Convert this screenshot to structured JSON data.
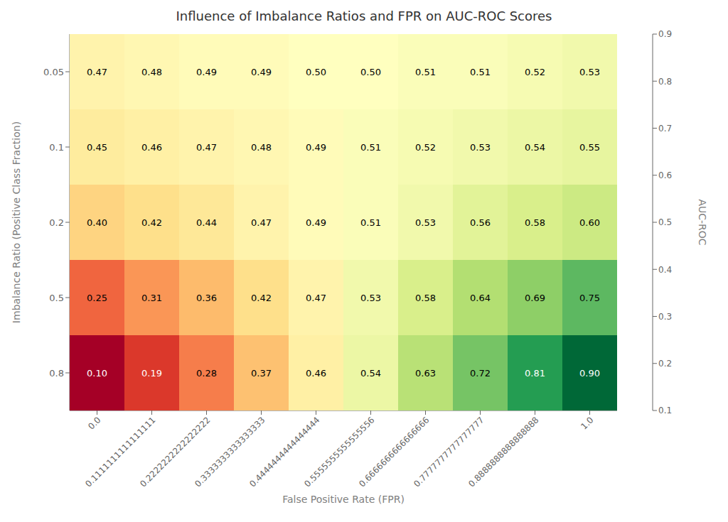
{
  "chart_data": {
    "type": "heatmap",
    "title": "Influence of Imbalance Ratios and FPR on AUC-ROC Scores",
    "xlabel": "False Positive Rate (FPR)",
    "ylabel": "Imbalance Ratio (Positive Class Fraction)",
    "x_categories": [
      "0.0",
      "0.1111111111111111",
      "0.2222222222222222",
      "0.3333333333333333",
      "0.4444444444444444",
      "0.5555555555555556",
      "0.6666666666666666",
      "0.7777777777777777",
      "0.8888888888888888",
      "1.0"
    ],
    "y_categories": [
      "0.05",
      "0.1",
      "0.2",
      "0.5",
      "0.8"
    ],
    "values": [
      [
        0.47,
        0.48,
        0.49,
        0.49,
        0.5,
        0.5,
        0.51,
        0.51,
        0.52,
        0.53
      ],
      [
        0.45,
        0.46,
        0.47,
        0.48,
        0.49,
        0.51,
        0.52,
        0.53,
        0.54,
        0.55
      ],
      [
        0.4,
        0.42,
        0.44,
        0.47,
        0.49,
        0.51,
        0.53,
        0.56,
        0.58,
        0.6
      ],
      [
        0.25,
        0.31,
        0.36,
        0.42,
        0.47,
        0.53,
        0.58,
        0.64,
        0.69,
        0.75
      ],
      [
        0.1,
        0.19,
        0.28,
        0.37,
        0.46,
        0.54,
        0.63,
        0.72,
        0.81,
        0.9
      ]
    ],
    "value_labels": [
      [
        "0.47",
        "0.48",
        "0.49",
        "0.49",
        "0.50",
        "0.50",
        "0.51",
        "0.51",
        "0.52",
        "0.53"
      ],
      [
        "0.45",
        "0.46",
        "0.47",
        "0.48",
        "0.49",
        "0.51",
        "0.52",
        "0.53",
        "0.54",
        "0.55"
      ],
      [
        "0.40",
        "0.42",
        "0.44",
        "0.47",
        "0.49",
        "0.51",
        "0.53",
        "0.56",
        "0.58",
        "0.60"
      ],
      [
        "0.25",
        "0.31",
        "0.36",
        "0.42",
        "0.47",
        "0.53",
        "0.58",
        "0.64",
        "0.69",
        "0.75"
      ],
      [
        "0.10",
        "0.19",
        "0.28",
        "0.37",
        "0.46",
        "0.54",
        "0.63",
        "0.72",
        "0.81",
        "0.90"
      ]
    ],
    "data_labels": true,
    "colorbar_label": "AUC-ROC",
    "colorbar_range": [
      0.1,
      0.9
    ],
    "colorbar_ticks": [
      0.1,
      0.2,
      0.3,
      0.4,
      0.5,
      0.6,
      0.7,
      0.8,
      0.9
    ]
  }
}
